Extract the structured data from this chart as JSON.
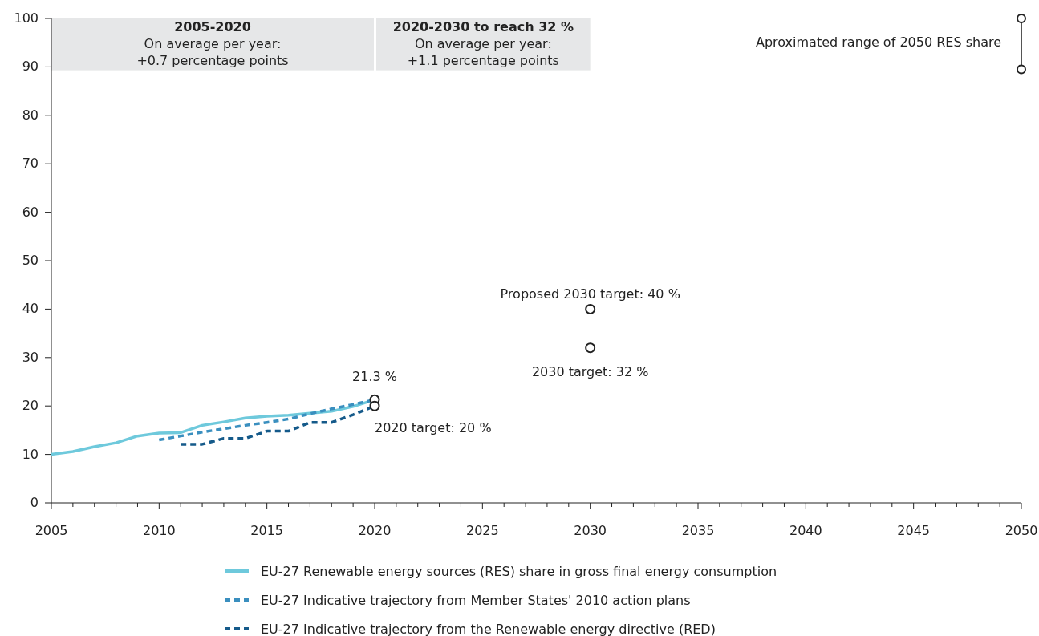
{
  "chart_data": {
    "type": "line",
    "x": [
      2005,
      2006,
      2007,
      2008,
      2009,
      2010,
      2011,
      2012,
      2013,
      2014,
      2015,
      2016,
      2017,
      2018,
      2019,
      2020
    ],
    "series": [
      {
        "name": "EU-27 Renewable energy sources (RES) share in gross final energy consumption",
        "color": "#6ec9dc",
        "line_style": "solid",
        "marker": "none",
        "values": [
          10.0,
          10.6,
          11.6,
          12.4,
          13.8,
          14.4,
          14.5,
          16.0,
          16.7,
          17.5,
          17.9,
          18.1,
          18.5,
          18.9,
          19.9,
          21.3
        ]
      },
      {
        "name": "EU-27 Indicative trajectory from Member States' 2010 action plans",
        "color": "#3a8fbf",
        "line_style": "dashed",
        "marker": "none",
        "x": [
          2010,
          2011,
          2012,
          2013,
          2014,
          2015,
          2016,
          2017,
          2018,
          2019,
          2020
        ],
        "values": [
          13.0,
          13.8,
          14.6,
          15.3,
          16.0,
          16.6,
          17.3,
          18.4,
          19.4,
          20.3,
          21.3
        ]
      },
      {
        "name": "EU-27 Indicative trajectory from the Renewable energy directive (RED)",
        "color": "#155a8a",
        "line_style": "dashed",
        "marker": "none",
        "x": [
          2011,
          2012,
          2013,
          2014,
          2015,
          2016,
          2017,
          2018,
          2019,
          2020
        ],
        "values": [
          12.1,
          12.1,
          13.3,
          13.3,
          14.8,
          14.8,
          16.6,
          16.6,
          18.2,
          20.0
        ]
      },
      {
        "type": "scatter",
        "color": "#222222",
        "marker": "circle",
        "x": [
          2020,
          2020,
          2030,
          2030
        ],
        "values": [
          21.3,
          20,
          40,
          32
        ]
      },
      {
        "type": "line",
        "color": "#555555",
        "line_style": "solid",
        "marker": "circle",
        "x": [
          2050,
          2050
        ],
        "values": [
          89.5,
          100
        ]
      }
    ],
    "xlim": [
      2005,
      2050
    ],
    "xticks": [
      2005,
      {
        "value": 2006,
        "label": null
      },
      {
        "value": 2007,
        "label": null
      },
      {
        "value": 2008,
        "label": null
      },
      {
        "value": 2009,
        "label": null
      },
      2010,
      {
        "value": 2011,
        "label": null
      },
      {
        "value": 2012,
        "label": null
      },
      {
        "value": 2013,
        "label": null
      },
      {
        "value": 2014,
        "label": null
      },
      2015,
      {
        "value": 2016,
        "label": null
      },
      {
        "value": 2017,
        "label": null
      },
      {
        "value": 2018,
        "label": null
      },
      {
        "value": 2019,
        "label": null
      },
      2020,
      {
        "value": 2021,
        "label": null
      },
      {
        "value": 2022,
        "label": null
      },
      {
        "value": 2023,
        "label": null
      },
      {
        "value": 2024,
        "label": null
      },
      2025,
      {
        "value": 2026,
        "label": null
      },
      {
        "value": 2027,
        "label": null
      },
      {
        "value": 2028,
        "label": null
      },
      {
        "value": 2029,
        "label": null
      },
      2030,
      {
        "value": 2031,
        "label": null
      },
      {
        "value": 2032,
        "label": null
      },
      {
        "value": 2033,
        "label": null
      },
      {
        "value": 2034,
        "label": null
      },
      2035,
      {
        "value": 2036,
        "label": null
      },
      {
        "value": 2037,
        "label": null
      },
      {
        "value": 2038,
        "label": null
      },
      {
        "value": 2039,
        "label": null
      },
      2040,
      {
        "value": 2041,
        "label": null
      },
      {
        "value": 2042,
        "label": null
      },
      {
        "value": 2043,
        "label": null
      },
      {
        "value": 2044,
        "label": null
      },
      2045,
      {
        "value": 2046,
        "label": null
      },
      {
        "value": 2047,
        "label": null
      },
      {
        "value": 2048,
        "label": null
      },
      {
        "value": 2049,
        "label": null
      },
      2050
    ],
    "ylim": [
      0,
      100
    ],
    "yticks": [
      0,
      10,
      20,
      30,
      40,
      50,
      60,
      70,
      80,
      90,
      100
    ],
    "grid": false,
    "legend": "bottom",
    "bands": [
      {
        "axis": "x",
        "from": 2005,
        "to": 2020,
        "color": "#e6e7e8",
        "label": "2005-2020\nOn average per year:\n+0.7 percentage points"
      },
      {
        "axis": "x",
        "from": 2020,
        "to": 2030,
        "color": "#e6e7e8",
        "label": "2020-2030 to reach 32 %\nOn average per year:\n+1.1 percentage points"
      }
    ],
    "annotations": [
      {
        "text": "21.3 %",
        "x": 2020,
        "y": 21.3
      },
      {
        "text": "2020 target: 20 %",
        "x": 2020,
        "y": 20
      },
      {
        "text": "Proposed 2030 target: 40 %",
        "x": 2030,
        "y": 40
      },
      {
        "text": "2030 target: 32 %",
        "x": 2030,
        "y": 32
      },
      {
        "text": "Aproximated range of 2050 RES share",
        "x": 2050,
        "y": 95
      }
    ]
  }
}
